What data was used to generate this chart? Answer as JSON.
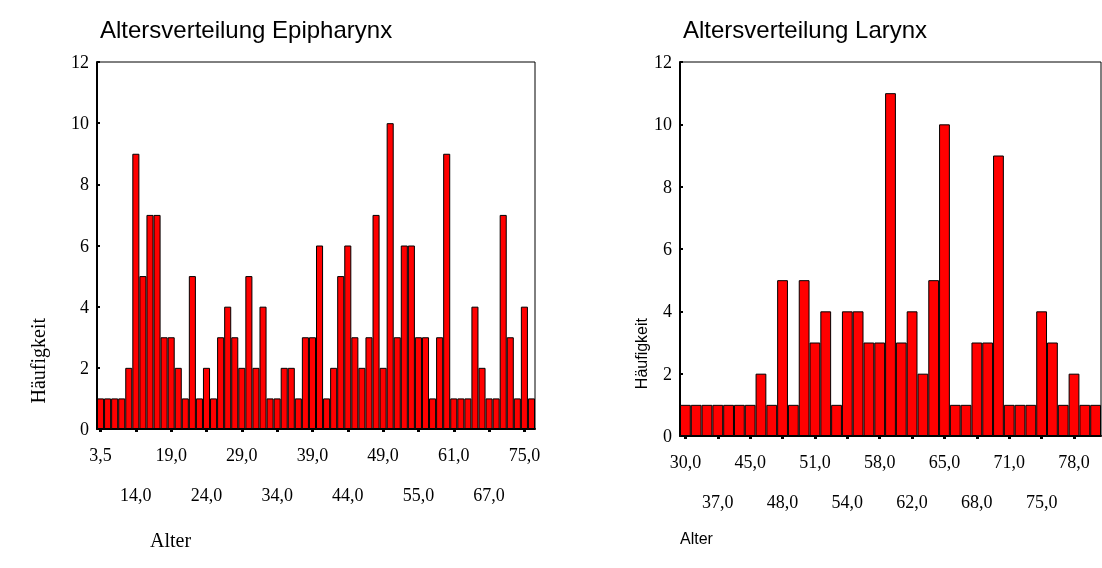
{
  "chart_data": [
    {
      "type": "bar",
      "title": "Altersverteilung Epipharynx",
      "xlabel": "Alter",
      "ylabel": "Häufigkeit",
      "color": "#ff0000",
      "ylim": [
        0,
        12
      ],
      "yticks": [
        0,
        2,
        4,
        6,
        8,
        10,
        12
      ],
      "categories": [
        "3,5",
        null,
        null,
        null,
        null,
        "14,0",
        null,
        null,
        null,
        null,
        "19,0",
        null,
        null,
        null,
        null,
        "24,0",
        null,
        null,
        null,
        null,
        "29,0",
        null,
        null,
        null,
        null,
        "34,0",
        null,
        null,
        null,
        null,
        "39,0",
        null,
        null,
        null,
        null,
        "44,0",
        null,
        null,
        null,
        null,
        "49,0",
        null,
        null,
        null,
        null,
        "55,0",
        null,
        null,
        null,
        null,
        "61,0",
        null,
        null,
        null,
        null,
        "67,0",
        null,
        null,
        null,
        null,
        "75,0",
        null
      ],
      "values": [
        1,
        1,
        1,
        1,
        2,
        9,
        5,
        7,
        7,
        3,
        3,
        2,
        1,
        5,
        1,
        2,
        1,
        3,
        4,
        3,
        2,
        5,
        2,
        4,
        1,
        1,
        2,
        2,
        1,
        3,
        3,
        6,
        1,
        2,
        5,
        6,
        3,
        2,
        3,
        7,
        2,
        10,
        3,
        6,
        6,
        3,
        3,
        1,
        3,
        9,
        1,
        1,
        1,
        4,
        2,
        1,
        1,
        7,
        3,
        1,
        4,
        1
      ]
    },
    {
      "type": "bar",
      "title": "Altersverteilung Larynx",
      "xlabel": "Alter",
      "ylabel": "Häufigkeit",
      "color": "#ff0000",
      "ylim": [
        0,
        12
      ],
      "yticks": [
        0,
        2,
        4,
        6,
        8,
        10,
        12
      ],
      "categories": [
        "30,0",
        null,
        null,
        "37,0",
        null,
        null,
        "45,0",
        null,
        null,
        "48,0",
        null,
        null,
        "51,0",
        null,
        null,
        "54,0",
        null,
        null,
        "58,0",
        null,
        null,
        "62,0",
        null,
        null,
        "65,0",
        null,
        null,
        "68,0",
        null,
        null,
        "71,0",
        null,
        null,
        "75,0",
        null,
        null,
        "78,0",
        null,
        null
      ],
      "values": [
        1,
        1,
        1,
        1,
        1,
        1,
        1,
        2,
        1,
        5,
        1,
        5,
        3,
        4,
        1,
        4,
        4,
        3,
        3,
        11,
        3,
        4,
        2,
        5,
        10,
        1,
        1,
        3,
        3,
        9,
        1,
        1,
        1,
        4,
        3,
        1,
        2,
        1,
        1
      ]
    }
  ]
}
